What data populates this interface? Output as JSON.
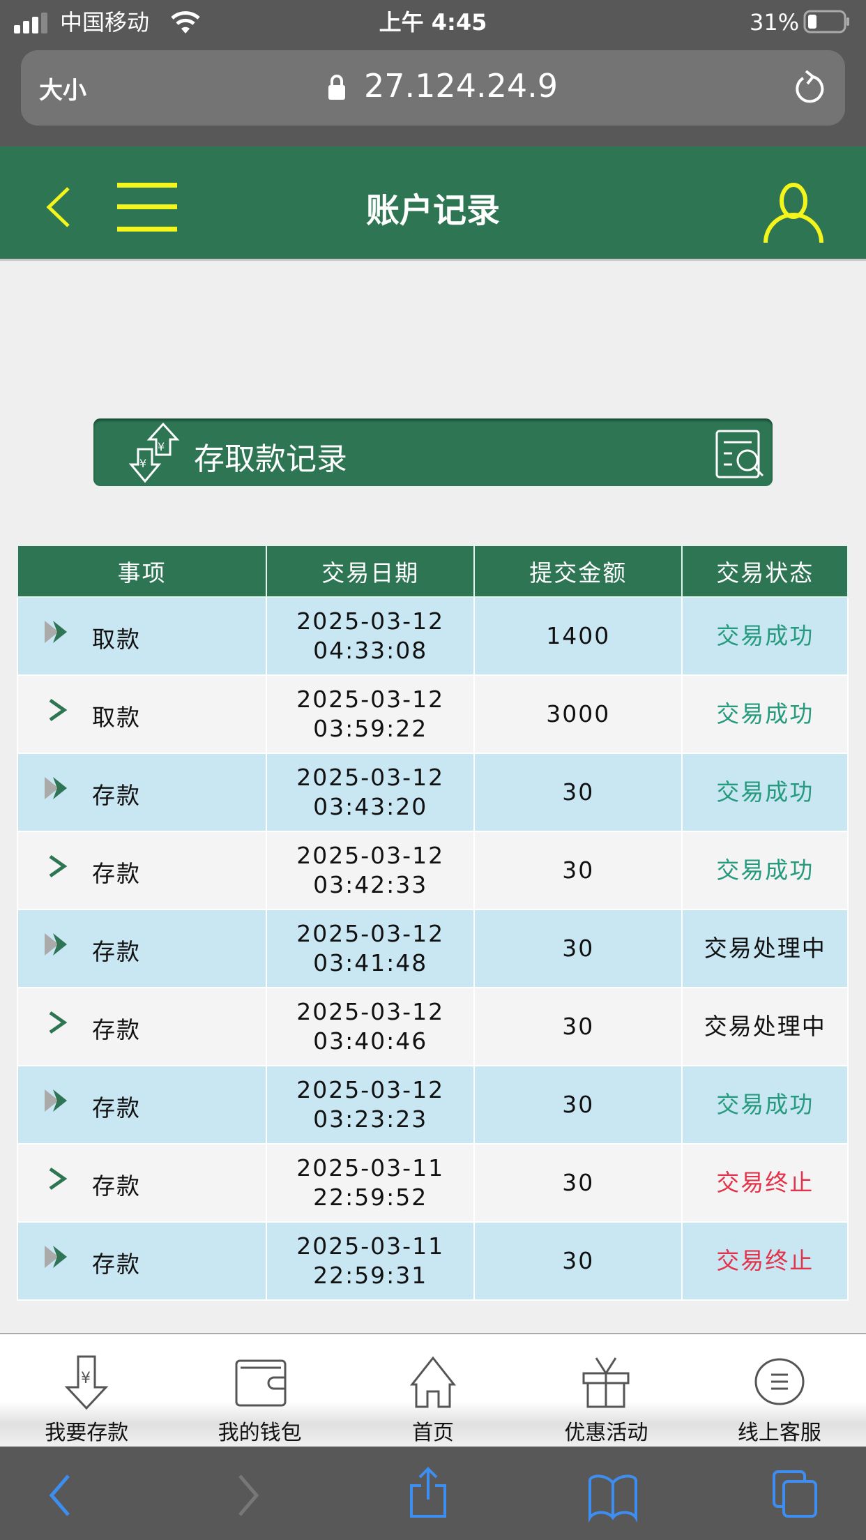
{
  "status_bar": {
    "carrier": "中国移动",
    "time": "上午 4:45",
    "battery": "31%",
    "battery_level": 0.31
  },
  "browser": {
    "text_size": "大小",
    "url": "27.124.24.9"
  },
  "header": {
    "title": "账户记录",
    "back_icon": "chevron-left-icon",
    "menu_icon": "hamburger-icon",
    "user_icon": "user-icon",
    "accent": "#f5f51e",
    "bg": "#2e7553"
  },
  "banner": {
    "title": "存取款记录",
    "icon": "yuan-exchange-icon",
    "search_icon": "document-search-icon"
  },
  "table": {
    "headers": [
      "事项",
      "交易日期",
      "提交金额",
      "交易状态"
    ],
    "rows": [
      {
        "item": "取款",
        "date": "2025-03-12",
        "time": "04:33:08",
        "amount": "1400",
        "status": "交易成功",
        "state": "success"
      },
      {
        "item": "取款",
        "date": "2025-03-12",
        "time": "03:59:22",
        "amount": "3000",
        "status": "交易成功",
        "state": "success"
      },
      {
        "item": "存款",
        "date": "2025-03-12",
        "time": "03:43:20",
        "amount": "30",
        "status": "交易成功",
        "state": "success"
      },
      {
        "item": "存款",
        "date": "2025-03-12",
        "time": "03:42:33",
        "amount": "30",
        "status": "交易成功",
        "state": "success"
      },
      {
        "item": "存款",
        "date": "2025-03-12",
        "time": "03:41:48",
        "amount": "30",
        "status": "交易处理中",
        "state": "pending"
      },
      {
        "item": "存款",
        "date": "2025-03-12",
        "time": "03:40:46",
        "amount": "30",
        "status": "交易处理中",
        "state": "pending"
      },
      {
        "item": "存款",
        "date": "2025-03-12",
        "time": "03:23:23",
        "amount": "30",
        "status": "交易成功",
        "state": "success"
      },
      {
        "item": "存款",
        "date": "2025-03-11",
        "time": "22:59:52",
        "amount": "30",
        "status": "交易终止",
        "state": "failed"
      },
      {
        "item": "存款",
        "date": "2025-03-11",
        "time": "22:59:31",
        "amount": "30",
        "status": "交易终止",
        "state": "failed"
      }
    ],
    "status_colors": {
      "success": "#259a7c",
      "pending": "#111111",
      "failed": "#e3324a"
    }
  },
  "bottom_nav": [
    {
      "label": "我要存款",
      "icon": "deposit-icon"
    },
    {
      "label": "我的钱包",
      "icon": "wallet-icon"
    },
    {
      "label": "首页",
      "icon": "home-icon"
    },
    {
      "label": "优惠活动",
      "icon": "gift-icon"
    },
    {
      "label": "线上客服",
      "icon": "chat-icon"
    }
  ]
}
